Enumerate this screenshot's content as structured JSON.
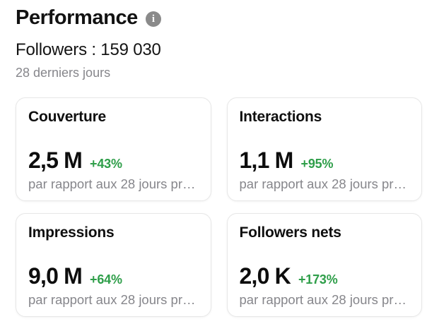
{
  "header": {
    "title": "Performance",
    "info_icon_glyph": "i",
    "followers_line": "Followers : 159 030",
    "period_label": "28 derniers jours"
  },
  "colors": {
    "text": "#111111",
    "muted": "#86868b",
    "positive": "#2e9e49",
    "card_border": "#e7e7e7"
  },
  "cards": [
    {
      "title": "Couverture",
      "value": "2,5 M",
      "delta": "+43%",
      "note": "par rapport aux 28 jours pr…"
    },
    {
      "title": "Interactions",
      "value": "1,1 M",
      "delta": "+95%",
      "note": "par rapport aux 28 jours pr…"
    },
    {
      "title": "Impressions",
      "value": "9,0 M",
      "delta": "+64%",
      "note": "par rapport aux 28 jours pr…"
    },
    {
      "title": "Followers nets",
      "value": "2,0 K",
      "delta": "+173%",
      "note": "par rapport aux 28 jours pr…"
    }
  ]
}
